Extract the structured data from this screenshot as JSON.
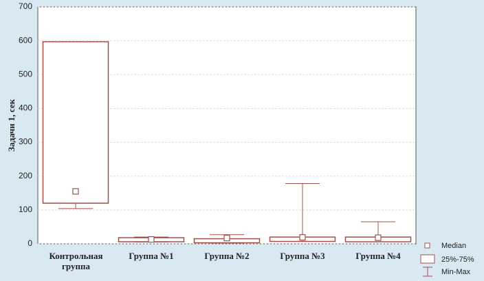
{
  "chart_data": {
    "type": "box",
    "y_label": "Задачи 1, сек",
    "categories": [
      "Контрольная группа",
      "Группа №1",
      "Группа №2",
      "Группа №3",
      "Группа №4"
    ],
    "min": [
      104,
      5,
      2,
      7,
      6
    ],
    "q1": [
      120,
      6,
      3,
      7,
      6
    ],
    "median": [
      155,
      13,
      17,
      19,
      18
    ],
    "q3": [
      597,
      18,
      15,
      20,
      20
    ],
    "max": [
      597,
      20,
      27,
      178,
      65
    ],
    "color": "#a0504a",
    "ylim": [
      0,
      700
    ],
    "yticks": [
      0,
      100,
      200,
      300,
      400,
      500,
      600,
      700
    ],
    "grid": true,
    "legend": [
      "Median",
      "25%-75%",
      "Min-Max"
    ]
  }
}
